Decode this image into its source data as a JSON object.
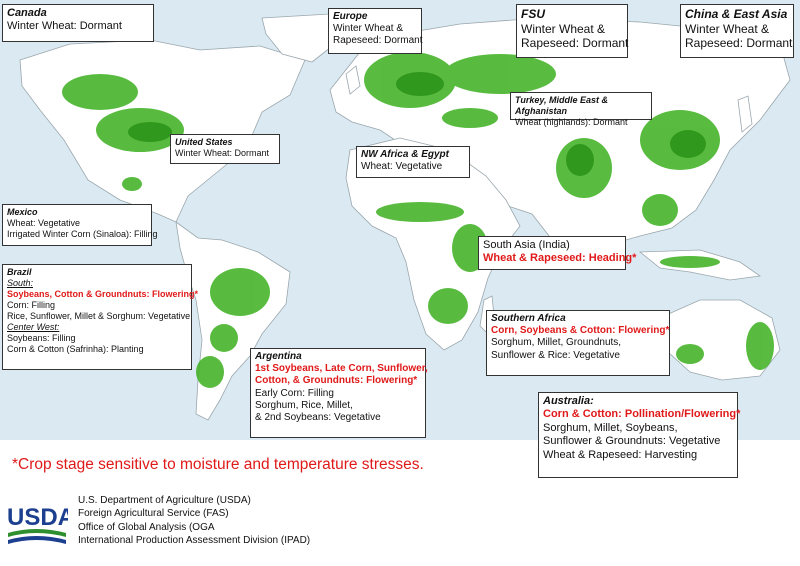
{
  "colors": {
    "ocean": "#dbeaf2",
    "land": "#ffffff",
    "crop": "#3cb01e",
    "crop_dark": "#238c12",
    "border": "#9aa6ad",
    "red": "#e01919",
    "usda_blue": "#1d3f8f",
    "usda_green": "#2f8f2f"
  },
  "regions": {
    "canada": {
      "title": "Canada",
      "lines": [
        "Winter Wheat: Dormant"
      ]
    },
    "europe": {
      "title": "Europe",
      "lines": [
        "Winter Wheat &",
        "Rapeseed: Dormant"
      ]
    },
    "fsu": {
      "title": "FSU",
      "lines": [
        "Winter Wheat &",
        "Rapeseed: Dormant"
      ]
    },
    "china": {
      "title": "China & East Asia",
      "lines": [
        "Winter Wheat &",
        "Rapeseed: Dormant"
      ]
    },
    "turkey": {
      "title": "Turkey, Middle East & Afghanistan",
      "lines": [
        "Wheat (highlands): Dormant"
      ]
    },
    "us": {
      "title": "United States",
      "lines": [
        "Winter Wheat: Dormant"
      ]
    },
    "nwafrica": {
      "title": "NW Africa & Egypt",
      "lines": [
        "Wheat: Vegetative"
      ]
    },
    "mexico": {
      "title": "Mexico",
      "lines": [
        "Wheat: Vegetative",
        "Irrigated Winter Corn (Sinaloa): Filling"
      ]
    },
    "southasia": {
      "title": "South Asia (India)",
      "red": "Wheat & Rapeseed:  Heading*"
    },
    "brazil": {
      "title": "Brazil",
      "south_label": "South:",
      "south_red": "Soybeans, Cotton & Groundnuts: Flowering*",
      "south_lines": [
        "Corn: Filling",
        "Rice, Sunflower, Millet & Sorghum: Vegetative"
      ],
      "cw_label": "Center West:",
      "cw_lines": [
        "Soybeans: Filling",
        "Corn & Cotton (Safrinha): Planting"
      ]
    },
    "safrica": {
      "title": "Southern Africa",
      "red": "Corn, Soybeans & Cotton:  Flowering*",
      "lines": [
        "Sorghum, Millet, Groundnuts,",
        "Sunflower & Rice: Vegetative"
      ]
    },
    "argentina": {
      "title": "Argentina",
      "red": [
        "1st Soybeans, Late Corn, Sunflower,",
        "Cotton, & Groundnuts: Flowering*"
      ],
      "lines": [
        "Early Corn: Filling",
        "Sorghum, Rice, Millet,",
        "& 2nd Soybeans: Vegetative"
      ]
    },
    "australia": {
      "title": "Australia:",
      "red": "Corn & Cotton: Pollination/Flowering*",
      "lines": [
        "Sorghum, Millet, Soybeans,",
        "Sunflower & Groundnuts: Vegetative",
        "Wheat & Rapeseed: Harvesting"
      ]
    }
  },
  "footnote": "*Crop stage sensitive to moisture and temperature stresses.",
  "usda": {
    "logo_text": "USDA",
    "lines": [
      "U.S. Department of Agriculture (USDA)",
      "Foreign Agricultural Service (FAS)",
      "Office of Global Analysis (OGA",
      "International Production Assessment Division (IPAD)"
    ]
  }
}
